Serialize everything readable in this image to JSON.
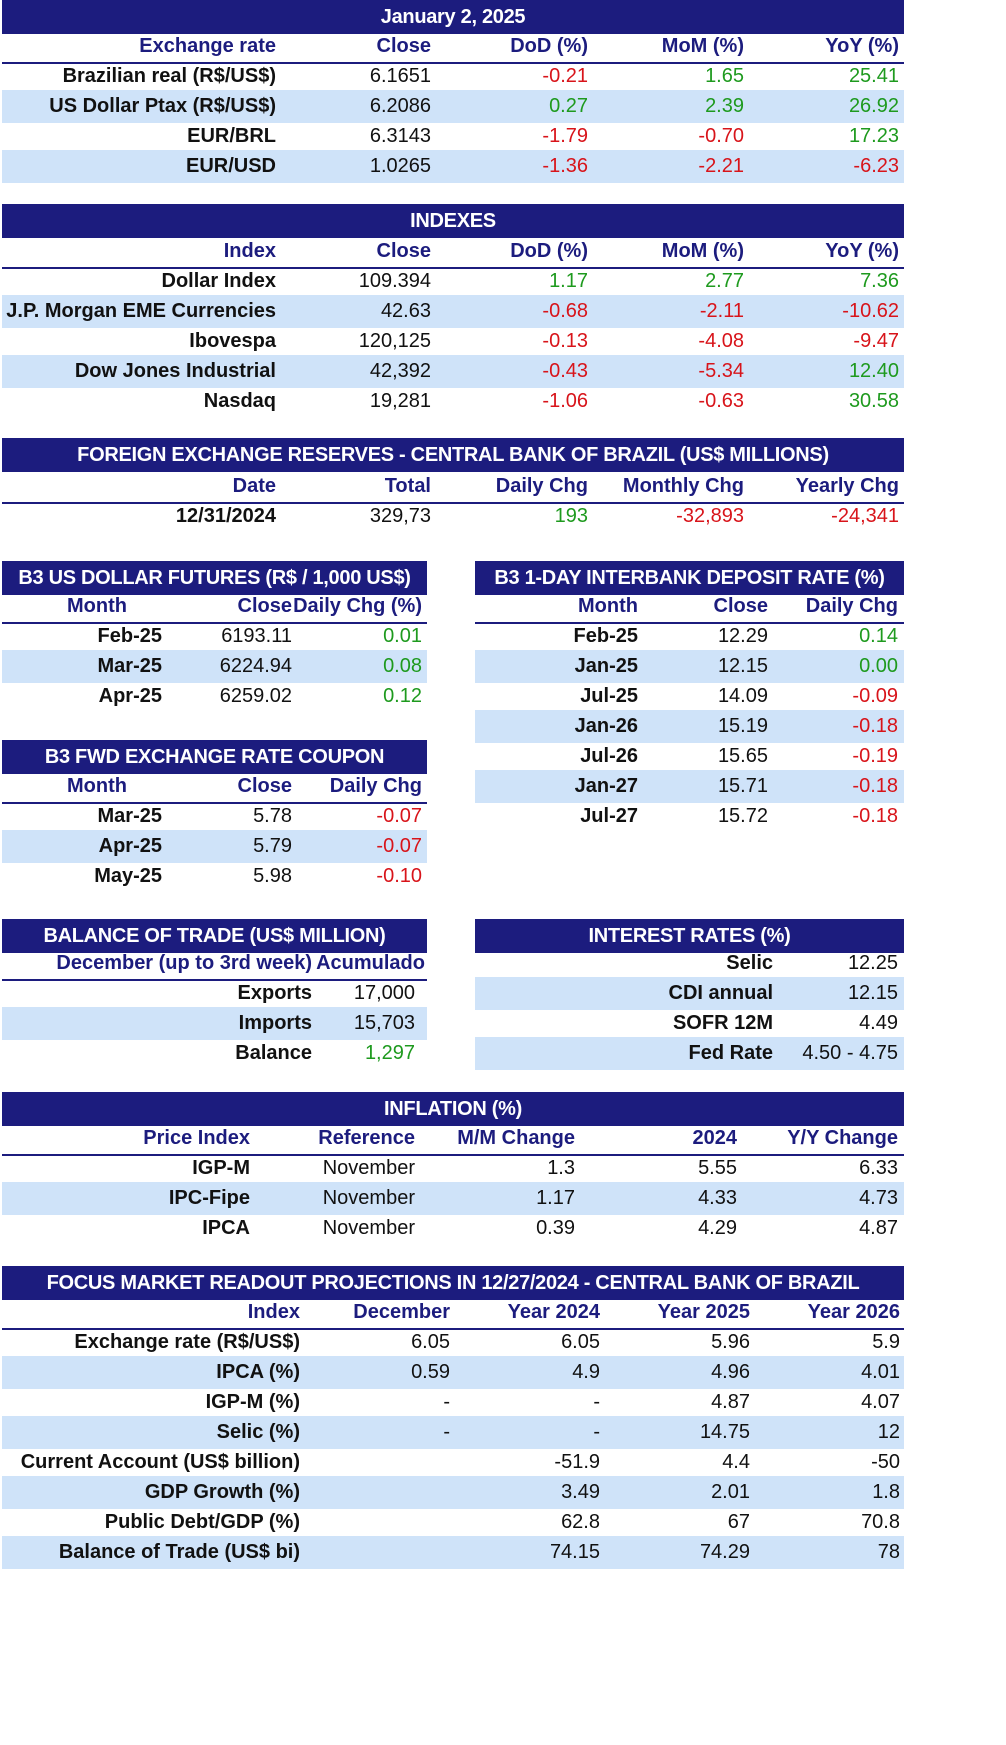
{
  "title": "January 2, 2025",
  "colors": {
    "header_bg": "#1c1c7e",
    "band": "#cfe3f9",
    "negative": "#d8141a",
    "positive": "#1e9a1e"
  },
  "exchange": {
    "headers": [
      "Exchange rate",
      "Close",
      "DoD (%)",
      "MoM (%)",
      "YoY (%)"
    ],
    "rows": [
      [
        "Brazilian real (R$/US$)",
        "6.1651",
        "-0.21",
        "1.65",
        "25.41"
      ],
      [
        "US Dollar Ptax (R$/US$)",
        "6.2086",
        "0.27",
        "2.39",
        "26.92"
      ],
      [
        "EUR/BRL",
        "6.3143",
        "-1.79",
        "-0.70",
        "17.23"
      ],
      [
        "EUR/USD",
        "1.0265",
        "-1.36",
        "-2.21",
        "-6.23"
      ]
    ]
  },
  "indexes": {
    "title": "INDEXES",
    "headers": [
      "Index",
      "Close",
      "DoD (%)",
      "MoM (%)",
      "YoY (%)"
    ],
    "rows": [
      [
        "Dollar Index",
        "109.394",
        "1.17",
        "2.77",
        "7.36"
      ],
      [
        "J.P. Morgan EME Currencies",
        "42.63",
        "-0.68",
        "-2.11",
        "-10.62"
      ],
      [
        "Ibovespa",
        "120,125",
        "-0.13",
        "-4.08",
        "-9.47"
      ],
      [
        "Dow Jones Industrial",
        "42,392",
        "-0.43",
        "-5.34",
        "12.40"
      ],
      [
        "Nasdaq",
        "19,281",
        "-1.06",
        "-0.63",
        "30.58"
      ]
    ]
  },
  "reserves": {
    "title": "FOREIGN EXCHANGE RESERVES - CENTRAL BANK OF BRAZIL (US$ MILLIONS)",
    "headers": [
      "Date",
      "Total",
      "Daily Chg",
      "Monthly Chg",
      "Yearly Chg"
    ],
    "rows": [
      [
        "12/31/2024",
        "329,73",
        "193",
        "-32,893",
        "-24,341"
      ]
    ]
  },
  "futures": {
    "title": "B3 US DOLLAR FUTURES (R$ / 1,000 US$)",
    "headers": [
      "Month",
      "Close",
      "Daily Chg (%)"
    ],
    "rows": [
      [
        "Feb-25",
        "6193.11",
        "0.01"
      ],
      [
        "Mar-25",
        "6224.94",
        "0.08"
      ],
      [
        "Apr-25",
        "6259.02",
        "0.12"
      ]
    ]
  },
  "interbank": {
    "title": "B3 1-DAY INTERBANK DEPOSIT RATE (%)",
    "headers": [
      "Month",
      "Close",
      "Daily Chg"
    ],
    "rows": [
      [
        "Feb-25",
        "12.29",
        "0.14"
      ],
      [
        "Jan-25",
        "12.15",
        "0.00"
      ],
      [
        "Jul-25",
        "14.09",
        "-0.09"
      ],
      [
        "Jan-26",
        "15.19",
        "-0.18"
      ],
      [
        "Jul-26",
        "15.65",
        "-0.19"
      ],
      [
        "Jan-27",
        "15.71",
        "-0.18"
      ],
      [
        "Jul-27",
        "15.72",
        "-0.18"
      ]
    ]
  },
  "coupon": {
    "title": "B3 FWD EXCHANGE RATE COUPON",
    "headers": [
      "Month",
      "Close",
      "Daily Chg"
    ],
    "rows": [
      [
        "Mar-25",
        "5.78",
        "-0.07"
      ],
      [
        "Apr-25",
        "5.79",
        "-0.07"
      ],
      [
        "May-25",
        "5.98",
        "-0.10"
      ]
    ]
  },
  "trade": {
    "title": "BALANCE OF TRADE (US$ MILLION)",
    "headers": [
      "December (up to 3rd week)",
      "Acumulado"
    ],
    "rows": [
      [
        "Exports",
        "17,000"
      ],
      [
        "Imports",
        "15,703"
      ],
      [
        "Balance",
        "1,297"
      ]
    ]
  },
  "interest": {
    "title": "INTEREST RATES (%)",
    "rows": [
      [
        "Selic",
        "12.25"
      ],
      [
        "CDI annual",
        "12.15"
      ],
      [
        "SOFR 12M",
        "4.49"
      ],
      [
        "Fed Rate",
        "4.50 - 4.75"
      ]
    ]
  },
  "inflation": {
    "title": "INFLATION (%)",
    "headers": [
      "Price Index",
      "Reference",
      "M/M Change",
      "2024",
      "Y/Y Change"
    ],
    "rows": [
      [
        "IGP-M",
        "November",
        "1.3",
        "5.55",
        "6.33"
      ],
      [
        "IPC-Fipe",
        "November",
        "1.17",
        "4.33",
        "4.73"
      ],
      [
        "IPCA",
        "November",
        "0.39",
        "4.29",
        "4.87"
      ]
    ]
  },
  "focus": {
    "title": "FOCUS MARKET READOUT PROJECTIONS IN 12/27/2024 - CENTRAL BANK OF BRAZIL",
    "headers": [
      "Index",
      "December",
      "Year 2024",
      "Year 2025",
      "Year 2026"
    ],
    "rows": [
      [
        "Exchange rate (R$/US$)",
        "6.05",
        "6.05",
        "5.96",
        "5.9"
      ],
      [
        "IPCA (%)",
        "0.59",
        "4.9",
        "4.96",
        "4.01"
      ],
      [
        "IGP-M (%)",
        "-",
        "-",
        "4.87",
        "4.07"
      ],
      [
        "Selic (%)",
        "-",
        "-",
        "14.75",
        "12"
      ],
      [
        "Current Account (US$ billion)",
        "",
        "-51.9",
        "4.4",
        "-50"
      ],
      [
        "GDP Growth (%)",
        "",
        "3.49",
        "2.01",
        "1.8"
      ],
      [
        "Public Debt/GDP (%)",
        "",
        "62.8",
        "67",
        "70.8"
      ],
      [
        "Balance of Trade (US$ bi)",
        "",
        "74.15",
        "74.29",
        "78"
      ]
    ]
  }
}
